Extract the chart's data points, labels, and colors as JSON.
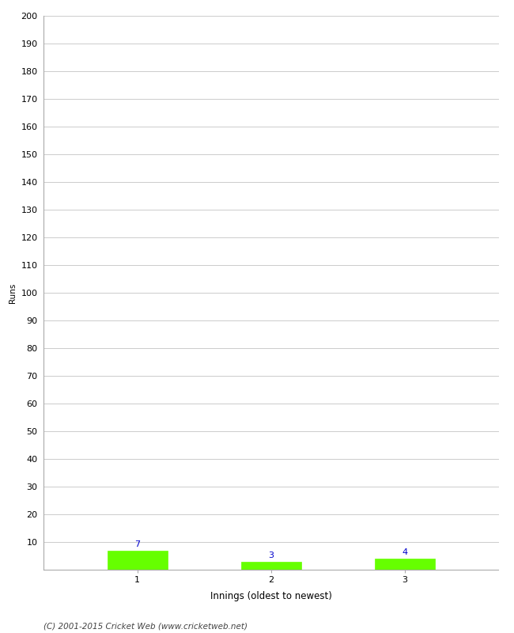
{
  "categories": [
    "1",
    "2",
    "3"
  ],
  "values": [
    7,
    3,
    4
  ],
  "bar_color": "#66ff00",
  "bar_edge_color": "#66ff00",
  "xlabel": "Innings (oldest to newest)",
  "ylabel": "Runs",
  "ylim": [
    0,
    200
  ],
  "yticks": [
    0,
    10,
    20,
    30,
    40,
    50,
    60,
    70,
    80,
    90,
    100,
    110,
    120,
    130,
    140,
    150,
    160,
    170,
    180,
    190,
    200
  ],
  "label_color": "#0000cc",
  "label_fontsize": 8,
  "xlabel_fontsize": 8.5,
  "ylabel_fontsize": 7.5,
  "tick_fontsize": 8,
  "background_color": "#ffffff",
  "grid_color": "#cccccc",
  "footer_text": "(C) 2001-2015 Cricket Web (www.cricketweb.net)",
  "footer_fontsize": 7.5,
  "bar_width": 0.45
}
